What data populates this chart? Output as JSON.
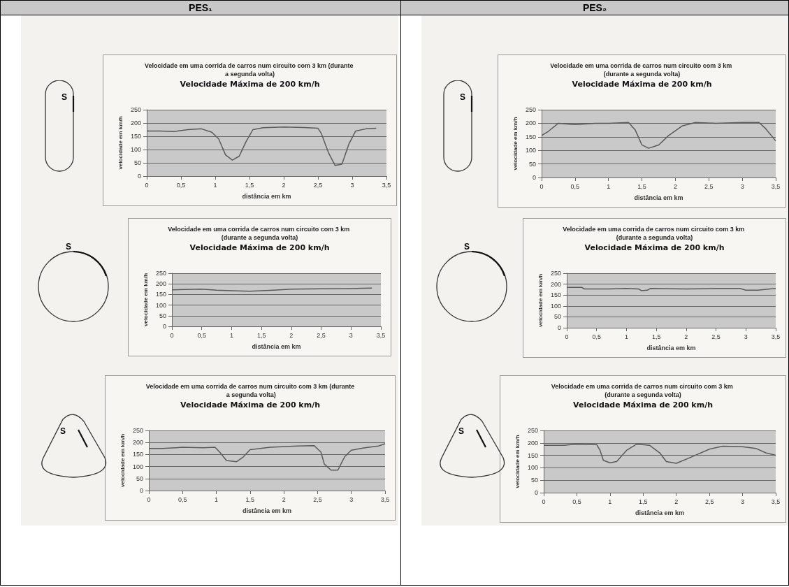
{
  "chart_data": [
    {
      "type": "line",
      "title": "Velocidade em uma corrida de carros num circuito com 3 km (durante a segunda volta)",
      "subtitle": "Velocidade Máxima de 200 km/h",
      "xlabel": "distância em km",
      "ylabel": "velocidade em km/h",
      "annotations": [
        "S",
        "PES₁"
      ],
      "xlim": [
        0,
        3.5
      ],
      "xticks": [
        0,
        {
          "value": 0.5,
          "label": "0,5"
        },
        1,
        {
          "value": 1.5,
          "label": "1,5"
        },
        2,
        {
          "value": 2.5,
          "label": "2,5"
        },
        3,
        {
          "value": 3.5,
          "label": "3,5"
        }
      ],
      "ylim": [
        0,
        250
      ],
      "yticks": [
        0,
        50,
        100,
        150,
        200,
        250
      ],
      "grid": "y",
      "series": [
        {
          "color": "#5a5a5a",
          "x": [
            0,
            0.2,
            0.4,
            0.6,
            0.8,
            0.95,
            1.05,
            1.15,
            1.25,
            1.35,
            1.45,
            1.55,
            1.7,
            2.0,
            2.3,
            2.5,
            2.55,
            2.65,
            2.75,
            2.85,
            2.95,
            3.05,
            3.2,
            3.35
          ],
          "values": [
            170,
            170,
            168,
            175,
            178,
            165,
            140,
            80,
            60,
            75,
            130,
            175,
            182,
            185,
            183,
            180,
            160,
            90,
            40,
            45,
            120,
            170,
            178,
            180
          ]
        }
      ]
    },
    {
      "type": "line",
      "title": "Velocidade em uma corrida de carros num circuito com 3 km (durante a segunda volta)",
      "subtitle": "Velocidade Máxima de 200 km/h",
      "xlabel": "distância em km",
      "ylabel": "velocidade em km/h",
      "annotations": [
        "S",
        "PES₂"
      ],
      "xlim": [
        0,
        3.5
      ],
      "xticks": [
        0,
        {
          "value": 0.5,
          "label": "0,5"
        },
        1,
        {
          "value": 1.5,
          "label": "1,5"
        },
        2,
        {
          "value": 2.5,
          "label": "2,5"
        },
        3,
        {
          "value": 3.5,
          "label": "3,5"
        }
      ],
      "ylim": [
        0,
        250
      ],
      "yticks": [
        0,
        50,
        100,
        150,
        200,
        250
      ],
      "grid": "y",
      "series": [
        {
          "color": "#5a5a5a",
          "x": [
            0,
            0.1,
            0.25,
            0.5,
            0.8,
            1.0,
            1.3,
            1.4,
            1.5,
            1.6,
            1.75,
            1.9,
            2.1,
            2.3,
            2.6,
            3.0,
            3.25,
            3.35,
            3.5
          ],
          "values": [
            155,
            170,
            200,
            195,
            200,
            200,
            203,
            175,
            120,
            108,
            120,
            155,
            190,
            203,
            200,
            203,
            203,
            180,
            135
          ]
        }
      ]
    },
    {
      "type": "line",
      "title": "Velocidade em uma corrida de carros num circuito com 3 km (durante a segunda volta)",
      "subtitle": "Velocidade Máxima de 200 km/h",
      "xlabel": "distância em km",
      "ylabel": "velocidade em km/h",
      "annotations": [
        "S"
      ],
      "xlim": [
        0,
        3.5
      ],
      "xticks": [
        0,
        {
          "value": 0.5,
          "label": "0,5"
        },
        1,
        {
          "value": 1.5,
          "label": "1,5"
        },
        2,
        {
          "value": 2.5,
          "label": "2,5"
        },
        3,
        {
          "value": 3.5,
          "label": "3,5"
        }
      ],
      "ylim": [
        0,
        250
      ],
      "yticks": [
        0,
        50,
        100,
        150,
        200,
        250
      ],
      "grid": "y",
      "series": [
        {
          "color": "#5a5a5a",
          "x": [
            0,
            0.5,
            0.75,
            1.0,
            1.3,
            1.7,
            2.0,
            2.5,
            3.0,
            3.35
          ],
          "values": [
            172,
            175,
            170,
            168,
            165,
            170,
            175,
            177,
            178,
            180
          ]
        }
      ]
    },
    {
      "type": "line",
      "title": "Velocidade em uma corrida de carros num circuito com 3 km (durante a segunda volta)",
      "subtitle": "Velocidade Máxima de 200 km/h",
      "xlabel": "distância em km",
      "ylabel": "velocidade em km/h",
      "annotations": [
        "S"
      ],
      "xlim": [
        0,
        3.5
      ],
      "xticks": [
        0,
        {
          "value": 0.5,
          "label": "0,5"
        },
        1,
        {
          "value": 1.5,
          "label": "1,5"
        },
        2,
        {
          "value": 2.5,
          "label": "2,5"
        },
        3,
        {
          "value": 3.5,
          "label": "3,5"
        }
      ],
      "ylim": [
        0,
        250
      ],
      "yticks": [
        0,
        50,
        100,
        150,
        200,
        250
      ],
      "grid": "y",
      "series": [
        {
          "color": "#5a5a5a",
          "x": [
            0,
            0.25,
            0.3,
            0.7,
            1.0,
            1.2,
            1.25,
            1.35,
            1.4,
            2.0,
            2.5,
            2.9,
            3.0,
            3.2,
            3.4,
            3.5
          ],
          "values": [
            185,
            185,
            178,
            178,
            180,
            178,
            170,
            172,
            180,
            178,
            180,
            180,
            172,
            172,
            178,
            180
          ]
        }
      ]
    },
    {
      "type": "line",
      "title": "Velocidade em uma corrida de carros num circuito com 3 km (durante a segunda volta)",
      "subtitle": "Velocidade Máxima de 200 km/h",
      "xlabel": "distância em km",
      "ylabel": "velocidade em km/h",
      "annotations": [
        "S"
      ],
      "xlim": [
        0,
        3.5
      ],
      "xticks": [
        0,
        {
          "value": 0.5,
          "label": "0,5"
        },
        1,
        {
          "value": 1.5,
          "label": "1,5"
        },
        2,
        {
          "value": 2.5,
          "label": "2,5"
        },
        3,
        {
          "value": 3.5,
          "label": "3,5"
        }
      ],
      "ylim": [
        0,
        250
      ],
      "yticks": [
        0,
        50,
        100,
        150,
        200,
        250
      ],
      "grid": "y",
      "series": [
        {
          "color": "#5a5a5a",
          "x": [
            0,
            0.2,
            0.5,
            0.8,
            0.98,
            1.05,
            1.15,
            1.3,
            1.4,
            1.5,
            1.8,
            2.2,
            2.45,
            2.55,
            2.6,
            2.7,
            2.8,
            2.9,
            3.0,
            3.2,
            3.4,
            3.5
          ],
          "values": [
            175,
            175,
            180,
            178,
            180,
            160,
            125,
            120,
            140,
            170,
            180,
            185,
            187,
            160,
            110,
            85,
            85,
            140,
            168,
            178,
            185,
            195
          ]
        }
      ]
    },
    {
      "type": "line",
      "title": "Velocidade em uma corrida de carros num circuito com 3 km (durante a segunda volta)",
      "subtitle": "Velocidade Máxima de 200 km/h",
      "xlabel": "distância em km",
      "ylabel": "velocidade em km/h",
      "annotations": [
        "S"
      ],
      "xlim": [
        0,
        3.5
      ],
      "xticks": [
        0,
        {
          "value": 0.5,
          "label": "0,5"
        },
        1,
        {
          "value": 1.5,
          "label": "1,5"
        },
        2,
        {
          "value": 2.5,
          "label": "2,5"
        },
        3,
        {
          "value": 3.5,
          "label": "3,5"
        }
      ],
      "ylim": [
        0,
        250
      ],
      "yticks": [
        0,
        50,
        100,
        150,
        200,
        250
      ],
      "grid": "y",
      "series": [
        {
          "color": "#5a5a5a",
          "x": [
            0,
            0.3,
            0.5,
            0.8,
            0.85,
            0.9,
            1.0,
            1.1,
            1.25,
            1.4,
            1.6,
            1.75,
            1.85,
            2.0,
            2.2,
            2.5,
            2.7,
            3.0,
            3.2,
            3.35,
            3.5
          ],
          "values": [
            190,
            190,
            195,
            193,
            170,
            130,
            120,
            125,
            170,
            195,
            190,
            160,
            125,
            118,
            140,
            175,
            187,
            185,
            178,
            160,
            150
          ]
        }
      ]
    }
  ]
}
